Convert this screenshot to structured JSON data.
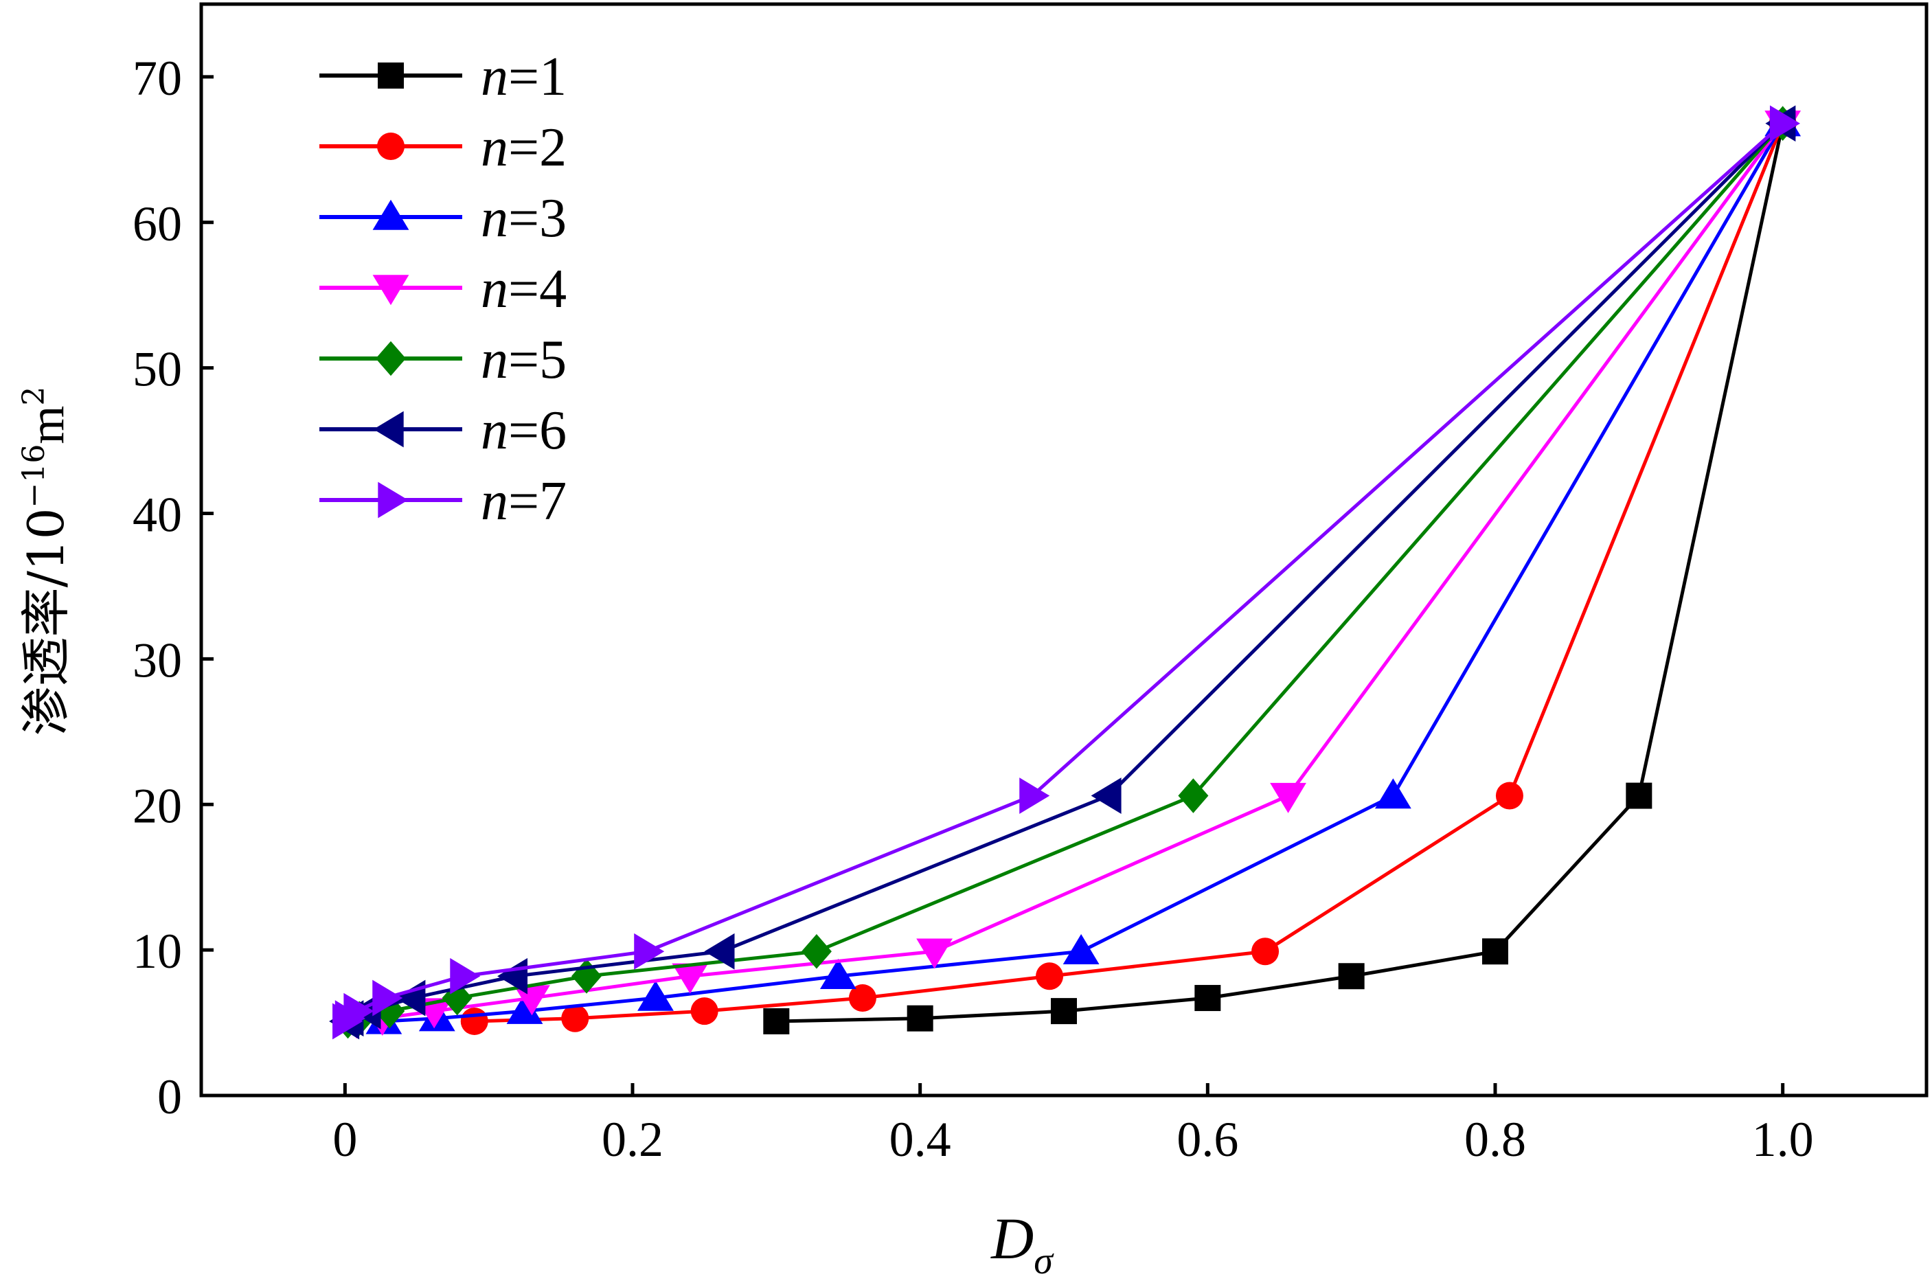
{
  "chart_data": {
    "type": "line",
    "title": "",
    "xlabel": {
      "main": "D",
      "sub": "σ"
    },
    "ylabel": {
      "main": "渗透率/10",
      "exp": "−16",
      "unit": "m",
      "unit_exp": "2"
    },
    "xlim": [
      -0.1,
      1.1
    ],
    "ylim": [
      0,
      75
    ],
    "xticks": [
      0,
      0.2,
      0.4,
      0.6,
      0.8,
      1.0
    ],
    "xtick_labels": [
      "0",
      "0.2",
      "0.4",
      "0.6",
      "0.8",
      "1.0"
    ],
    "yticks": [
      0,
      10,
      20,
      30,
      40,
      50,
      60,
      70
    ],
    "ytick_labels": [
      "0",
      "10",
      "20",
      "30",
      "40",
      "50",
      "60",
      "70"
    ],
    "grid": false,
    "legend_position": "top-left",
    "series": [
      {
        "name": "n=1",
        "name_var": "n",
        "name_val": "=1",
        "color": "#000000",
        "marker": "square",
        "x": [
          0.3,
          0.4,
          0.5,
          0.6,
          0.7,
          0.8,
          0.9,
          1.0
        ],
        "y": [
          5.1,
          5.3,
          5.8,
          6.7,
          8.2,
          9.9,
          20.6,
          66.8
        ]
      },
      {
        "name": "n=2",
        "name_var": "n",
        "name_val": "=2",
        "color": "#ff0000",
        "marker": "circle",
        "x": [
          0.09,
          0.16,
          0.25,
          0.36,
          0.49,
          0.64,
          0.81,
          1.0
        ],
        "y": [
          5.1,
          5.3,
          5.8,
          6.7,
          8.2,
          9.9,
          20.6,
          66.8
        ]
      },
      {
        "name": "n=3",
        "name_var": "n",
        "name_val": "=3",
        "color": "#0000ff",
        "marker": "triangle-up",
        "x": [
          0.027,
          0.064,
          0.125,
          0.216,
          0.343,
          0.512,
          0.729,
          1.0
        ],
        "y": [
          5.1,
          5.3,
          5.8,
          6.7,
          8.2,
          9.9,
          20.6,
          66.8
        ]
      },
      {
        "name": "n=4",
        "name_var": "n",
        "name_val": "=4",
        "color": "#ff00ff",
        "marker": "triangle-down",
        "x": [
          0.008,
          0.026,
          0.062,
          0.13,
          0.24,
          0.41,
          0.656,
          1.0
        ],
        "y": [
          5.1,
          5.3,
          5.8,
          6.7,
          8.2,
          9.9,
          20.6,
          66.8
        ]
      },
      {
        "name": "n=5",
        "name_var": "n",
        "name_val": "=5",
        "color": "#008000",
        "marker": "diamond",
        "x": [
          0.002,
          0.01,
          0.031,
          0.078,
          0.168,
          0.328,
          0.59,
          1.0
        ],
        "y": [
          5.1,
          5.3,
          5.8,
          6.7,
          8.2,
          9.9,
          20.6,
          66.8
        ]
      },
      {
        "name": "n=6",
        "name_var": "n",
        "name_val": "=6",
        "color": "#000080",
        "marker": "triangle-left",
        "x": [
          0.001,
          0.004,
          0.016,
          0.047,
          0.118,
          0.262,
          0.531,
          1.0
        ],
        "y": [
          5.1,
          5.3,
          5.8,
          6.7,
          8.2,
          9.9,
          20.6,
          66.8
        ]
      },
      {
        "name": "n=7",
        "name_var": "n",
        "name_val": "=7",
        "color": "#8000ff",
        "marker": "triangle-right",
        "x": [
          0.0002,
          0.002,
          0.008,
          0.028,
          0.082,
          0.21,
          0.478,
          1.0
        ],
        "y": [
          5.1,
          5.3,
          5.8,
          6.7,
          8.2,
          9.9,
          20.6,
          66.8
        ]
      }
    ]
  }
}
